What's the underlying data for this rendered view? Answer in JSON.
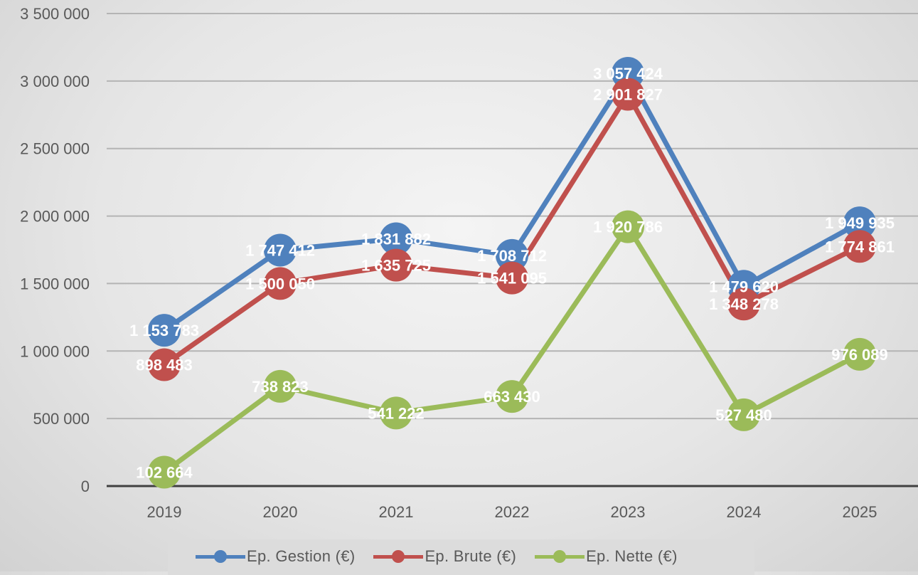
{
  "chart_data": {
    "type": "line",
    "categories": [
      "2019",
      "2020",
      "2021",
      "2022",
      "2023",
      "2024",
      "2025"
    ],
    "ylim": [
      0,
      3500000
    ],
    "y_ticks": [
      0,
      500000,
      1000000,
      1500000,
      2000000,
      2500000,
      3000000,
      3500000
    ],
    "y_tick_labels": [
      "0",
      "500 000",
      "1 000 000",
      "1 500 000",
      "2 000 000",
      "2 500 000",
      "3 000 000",
      "3 500 000"
    ],
    "grid": true,
    "legend_position": "bottom",
    "series": [
      {
        "name": "Ep. Gestion (€)",
        "color": "#4f81bd",
        "values": [
          1153783,
          1747412,
          1831882,
          1708712,
          3057424,
          1479620,
          1949935
        ],
        "labels": [
          "1 153 783",
          "1 747 412",
          "1 831 882",
          "1 708 712",
          "3 057 424",
          "1 479 620",
          "1 949 935"
        ]
      },
      {
        "name": "Ep. Brute (€)",
        "color": "#c0504d",
        "values": [
          898483,
          1500050,
          1635725,
          1541095,
          2901827,
          1348278,
          1774861
        ],
        "labels": [
          "898 483",
          "1 500 050",
          "1 635 725",
          "1 541 095",
          "2 901 827",
          "1 348 278",
          "1 774 861"
        ]
      },
      {
        "name": "Ep. Nette (€)",
        "color": "#9bbb59",
        "values": [
          102664,
          738823,
          541222,
          663430,
          1920786,
          527480,
          976089
        ],
        "labels": [
          "102 664",
          "738 823",
          "541 222",
          "663 430",
          "1 920 786",
          "527 480",
          "976 089"
        ]
      }
    ]
  }
}
